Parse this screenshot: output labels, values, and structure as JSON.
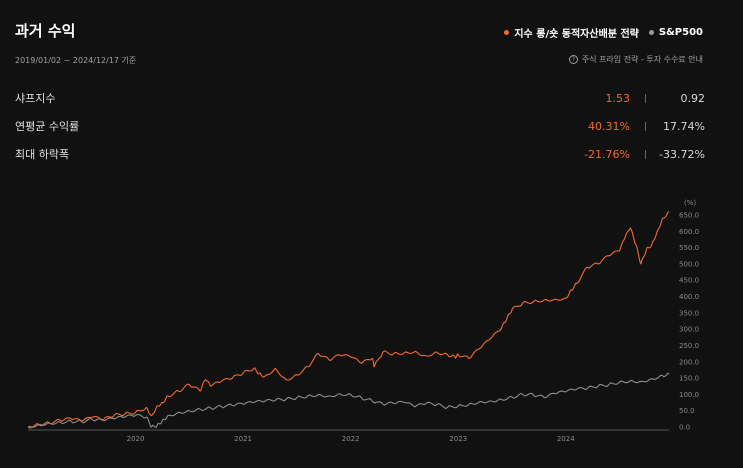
{
  "header": {
    "title": "과거 수익",
    "period": "2019/01/02 ~ 2024/12/17 기준",
    "disclaimer": "주식 프라임 전략 - 투자 수수료 안내"
  },
  "legend": {
    "strategy": "지수 롱/숏 동적자산배분 전략",
    "benchmark": "S&P500"
  },
  "colors": {
    "strategy": "#f26a2e",
    "benchmark": "#8c8c8c",
    "background": "#111111"
  },
  "metrics": [
    {
      "label": "샤프지수",
      "strategy": "1.53",
      "benchmark": "0.92"
    },
    {
      "label": "연평균 수익률",
      "strategy": "40.31%",
      "benchmark": "17.74%"
    },
    {
      "label": "최대 하락폭",
      "strategy": "-21.76%",
      "benchmark": "-33.72%"
    }
  ],
  "chart_data": {
    "type": "line",
    "ylabel": "(%)",
    "ylim": [
      0,
      650
    ],
    "yticks": [
      0,
      50,
      100,
      150,
      200,
      250,
      300,
      350,
      400,
      450,
      500,
      550,
      600,
      650
    ],
    "ytick_labels": [
      "0.0",
      "50.0",
      "100.0",
      "150.0",
      "200.0",
      "250.0",
      "300.0",
      "350.0",
      "400.0",
      "450.0",
      "500.0",
      "550.0",
      "600.0",
      "650.0"
    ],
    "xlim": [
      2019.0,
      2024.96
    ],
    "xticks": [
      2020,
      2021,
      2022,
      2023,
      2024
    ],
    "xtick_labels": [
      "2020",
      "2021",
      "2022",
      "2023",
      "2024"
    ],
    "grid": false,
    "legend_position": "top-right",
    "series": [
      {
        "name": "지수 롱/숏 동적자산배분 전략",
        "color": "#f26a2e",
        "x": [
          2019.0,
          2019.1,
          2019.2,
          2019.3,
          2019.4,
          2019.5,
          2019.6,
          2019.7,
          2019.8,
          2019.9,
          2020.0,
          2020.1,
          2020.15,
          2020.2,
          2020.25,
          2020.3,
          2020.4,
          2020.5,
          2020.6,
          2020.65,
          2020.7,
          2020.8,
          2020.9,
          2021.0,
          2021.1,
          2021.15,
          2021.2,
          2021.3,
          2021.4,
          2021.5,
          2021.6,
          2021.7,
          2021.8,
          2021.9,
          2022.0,
          2022.1,
          2022.2,
          2022.22,
          2022.3,
          2022.4,
          2022.5,
          2022.6,
          2022.7,
          2022.8,
          2022.9,
          2022.97,
          2023.0,
          2023.1,
          2023.2,
          2023.3,
          2023.4,
          2023.45,
          2023.5,
          2023.6,
          2023.7,
          2023.8,
          2023.9,
          2024.0,
          2024.05,
          2024.1,
          2024.2,
          2024.3,
          2024.4,
          2024.5,
          2024.55,
          2024.6,
          2024.65,
          2024.7,
          2024.75,
          2024.8,
          2024.85,
          2024.9,
          2024.96
        ],
        "y": [
          0,
          8,
          12,
          20,
          25,
          18,
          30,
          22,
          35,
          40,
          45,
          60,
          35,
          65,
          75,
          95,
          110,
          130,
          110,
          145,
          125,
          140,
          150,
          165,
          180,
          165,
          155,
          180,
          145,
          160,
          185,
          225,
          205,
          220,
          215,
          195,
          210,
          185,
          230,
          225,
          228,
          232,
          218,
          230,
          222,
          215,
          220,
          210,
          240,
          270,
          300,
          330,
          360,
          380,
          385,
          390,
          392,
          395,
          420,
          440,
          490,
          500,
          525,
          540,
          580,
          610,
          560,
          500,
          545,
          560,
          600,
          640,
          660
        ]
      },
      {
        "name": "S&P500",
        "color": "#8c8c8c",
        "x": [
          2019.0,
          2019.1,
          2019.2,
          2019.3,
          2019.4,
          2019.5,
          2019.6,
          2019.7,
          2019.8,
          2019.9,
          2020.0,
          2020.1,
          2020.15,
          2020.2,
          2020.25,
          2020.3,
          2020.4,
          2020.5,
          2020.6,
          2020.7,
          2020.8,
          2020.9,
          2021.0,
          2021.1,
          2021.2,
          2021.3,
          2021.4,
          2021.5,
          2021.6,
          2021.7,
          2021.8,
          2021.9,
          2022.0,
          2022.1,
          2022.2,
          2022.3,
          2022.4,
          2022.5,
          2022.6,
          2022.7,
          2022.8,
          2022.9,
          2023.0,
          2023.1,
          2023.2,
          2023.3,
          2023.4,
          2023.5,
          2023.6,
          2023.7,
          2023.8,
          2023.9,
          2024.0,
          2024.1,
          2024.2,
          2024.3,
          2024.4,
          2024.5,
          2024.6,
          2024.7,
          2024.8,
          2024.9,
          2024.96
        ],
        "y": [
          0,
          8,
          12,
          15,
          18,
          16,
          22,
          20,
          25,
          30,
          35,
          30,
          0,
          5,
          20,
          35,
          45,
          50,
          55,
          58,
          62,
          66,
          70,
          75,
          78,
          82,
          85,
          90,
          95,
          100,
          95,
          102,
          100,
          90,
          80,
          70,
          72,
          75,
          62,
          72,
          68,
          60,
          65,
          70,
          78,
          80,
          85,
          92,
          100,
          98,
          90,
          102,
          108,
          115,
          118,
          125,
          130,
          138,
          142,
          140,
          148,
          158,
          162
        ]
      }
    ]
  }
}
